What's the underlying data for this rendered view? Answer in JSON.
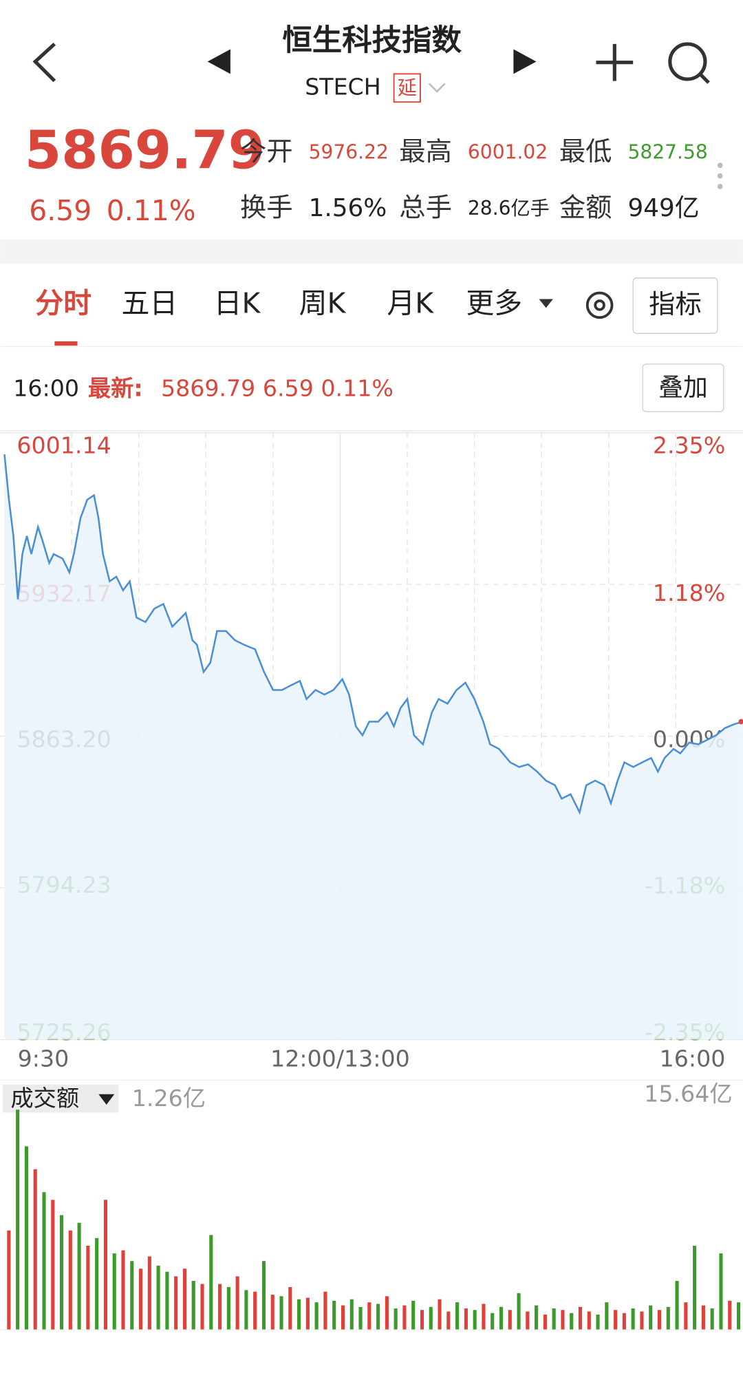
{
  "header": {
    "title": "恒生科技指数",
    "code": "STECH",
    "badge": "延"
  },
  "quote": {
    "price": "5869.79",
    "change": "6.59",
    "change_pct": "0.11%",
    "stats": [
      {
        "label": "今开",
        "value": "5976.22"
      },
      {
        "label": "最高",
        "value": "6001.02"
      },
      {
        "label": "最低",
        "value": "5827.58"
      },
      {
        "label": "换手",
        "value": "1.56%"
      },
      {
        "label": "总手",
        "value": "28.6亿手"
      },
      {
        "label": "金额",
        "value": "949亿"
      }
    ]
  },
  "tabs": [
    "分时",
    "五日",
    "日K",
    "周K",
    "月K",
    "更多"
  ],
  "indicator_button": "指标",
  "info": {
    "time": "16:00",
    "latest_label": "最新:",
    "latest": "5869.79 6.59 0.11%",
    "overlay_button": "叠加"
  },
  "chart_data": [
    {
      "type": "line",
      "color": "#4a8fd6",
      "up_color": "#d9473c",
      "down_color": "#3e9b2c",
      "flat_color": "#666666",
      "x": [
        0,
        2,
        4,
        6,
        8,
        10,
        12,
        15,
        17,
        20,
        22,
        26,
        29,
        31,
        34,
        37,
        40,
        42,
        44,
        47,
        50,
        53,
        56,
        59,
        63,
        67,
        71,
        75,
        79,
        81,
        84,
        86,
        89,
        92,
        95,
        99,
        103,
        107,
        112,
        116,
        120,
        124,
        128,
        132,
        135,
        139,
        143,
        147,
        151,
        154,
        157,
        160,
        163,
        167,
        171,
        174,
        177,
        180,
        183,
        187,
        191,
        194,
        198,
        202,
        206,
        210,
        214,
        217,
        221,
        226,
        230,
        234,
        238,
        242,
        246,
        249,
        253,
        257,
        260,
        264,
        268,
        271,
        274,
        277,
        281,
        285,
        289,
        292,
        295,
        299,
        302,
        306,
        310,
        314,
        318,
        322,
        326,
        330
      ],
      "values": [
        5991.3,
        5970.7,
        5954.2,
        5925.4,
        5946,
        5954.2,
        5946,
        5958.3,
        5952.1,
        5941.9,
        5946,
        5943.9,
        5937.7,
        5946,
        5962.4,
        5970.7,
        5972.7,
        5962.4,
        5946,
        5933.6,
        5935.7,
        5929.5,
        5933.6,
        5917.1,
        5915.1,
        5921.2,
        5923.3,
        5913,
        5917.1,
        5919.2,
        5906.8,
        5904.8,
        5892.4,
        5896.6,
        5911,
        5911,
        5906.8,
        5904.8,
        5902.7,
        5892.4,
        5884.2,
        5884.2,
        5886.3,
        5888.3,
        5880.1,
        5884.2,
        5882.1,
        5884.2,
        5889.1,
        5882.1,
        5867.7,
        5863.6,
        5869.8,
        5869.8,
        5874,
        5867.7,
        5876,
        5880.1,
        5863.6,
        5859.5,
        5874,
        5880.1,
        5878,
        5884.2,
        5887.5,
        5880.1,
        5869.8,
        5859.5,
        5857.4,
        5851.3,
        5849.2,
        5850.4,
        5847.1,
        5843,
        5840.9,
        5834.8,
        5836.8,
        5828.6,
        5840.9,
        5843,
        5840.9,
        5832.7,
        5843,
        5851.3,
        5849.2,
        5851.3,
        5853.3,
        5847.1,
        5853.3,
        5857.4,
        5855.4,
        5860.3,
        5859.5,
        5861.5,
        5863.6,
        5866.9,
        5868.6,
        5869.8
      ],
      "xlim": [
        0,
        330
      ],
      "xticks": [
        {
          "value": 0,
          "label": "9:30"
        },
        {
          "value": 150,
          "label": "12:00/13:00"
        },
        {
          "value": 330,
          "label": "16:00"
        }
      ],
      "ylim": [
        5725.26,
        6001.14
      ],
      "yticks": [
        6001.14,
        5932.17,
        {
          "value": 5863.2,
          "label": "5863.20"
        },
        5794.23,
        5725.26
      ],
      "y2lim": [
        -2.35,
        2.35
      ],
      "y2ticks": [
        {
          "value": 2.35,
          "label": "2.35%"
        },
        {
          "value": 1.18,
          "label": "1.18%"
        },
        {
          "value": 0,
          "label": "0.00%"
        },
        {
          "value": -1.18,
          "label": "-1.18%"
        },
        {
          "value": -2.35,
          "label": "-2.35%"
        }
      ],
      "grid": true
    },
    {
      "type": "bar",
      "label": "成交额",
      "current": "1.26亿",
      "ylim": [
        0,
        15.64
      ],
      "yticks": [
        {
          "value": 15.64,
          "label": "15.64亿"
        }
      ],
      "values": [
        6.5,
        14.4,
        12,
        10.5,
        9,
        8.5,
        7.5,
        6.5,
        7,
        5.5,
        6,
        8.5,
        5,
        5.2,
        4.5,
        4,
        4.8,
        4.2,
        3.8,
        3.5,
        4,
        3.2,
        3,
        6.2,
        3,
        2.8,
        3.5,
        2.6,
        2.5,
        4.5,
        2.3,
        2.2,
        2.8,
        2,
        2.1,
        1.8,
        2.5,
        1.9,
        1.6,
        2,
        1.5,
        1.8,
        1.7,
        2.2,
        1.4,
        1.6,
        1.9,
        1.3,
        1.5,
        2,
        1.2,
        1.8,
        1.4,
        1.3,
        1.7,
        1.1,
        1.5,
        1.3,
        2.4,
        1.2,
        1.6,
        1,
        1.4,
        1.3,
        1.1,
        1.5,
        1.2,
        1,
        1.8,
        1.3,
        1.1,
        1.4,
        1.2,
        1.6,
        1.3,
        1.5,
        3.2,
        1.8,
        5.5,
        1.6,
        1.4,
        5,
        1.9,
        1.8
      ],
      "colors": [
        "#e0403a",
        "#3c9a2a",
        "#3c9a2a",
        "#e0403a",
        "#3c9a2a",
        "#e0403a",
        "#3c9a2a",
        "#e0403a",
        "#3c9a2a",
        "#e0403a",
        "#3c9a2a",
        "#e0403a",
        "#3c9a2a",
        "#e0403a",
        "#3c9a2a",
        "#e0403a",
        "#e0403a",
        "#3c9a2a",
        "#3c9a2a",
        "#e0403a",
        "#e0403a",
        "#3c9a2a",
        "#e0403a",
        "#3c9a2a",
        "#e0403a",
        "#3c9a2a",
        "#e0403a",
        "#3c9a2a",
        "#e0403a",
        "#3c9a2a",
        "#e0403a",
        "#3c9a2a",
        "#e0403a",
        "#3c9a2a",
        "#e0403a",
        "#3c9a2a",
        "#e0403a",
        "#3c9a2a",
        "#e0403a",
        "#3c9a2a",
        "#3c9a2a",
        "#e0403a",
        "#3c9a2a",
        "#e0403a",
        "#3c9a2a",
        "#e0403a",
        "#3c9a2a",
        "#e0403a",
        "#3c9a2a",
        "#e0403a",
        "#e0403a",
        "#3c9a2a",
        "#e0403a",
        "#3c9a2a",
        "#e0403a",
        "#3c9a2a",
        "#3c9a2a",
        "#e0403a",
        "#3c9a2a",
        "#e0403a",
        "#3c9a2a",
        "#e0403a",
        "#3c9a2a",
        "#e0403a",
        "#3c9a2a",
        "#e0403a",
        "#e0403a",
        "#3c9a2a",
        "#3c9a2a",
        "#e0403a",
        "#e0403a",
        "#3c9a2a",
        "#e0403a",
        "#3c9a2a",
        "#e0403a",
        "#3c9a2a",
        "#3c9a2a",
        "#e0403a",
        "#3c9a2a",
        "#e0403a",
        "#3c9a2a",
        "#3c9a2a",
        "#e0403a",
        "#3c9a2a"
      ]
    }
  ]
}
